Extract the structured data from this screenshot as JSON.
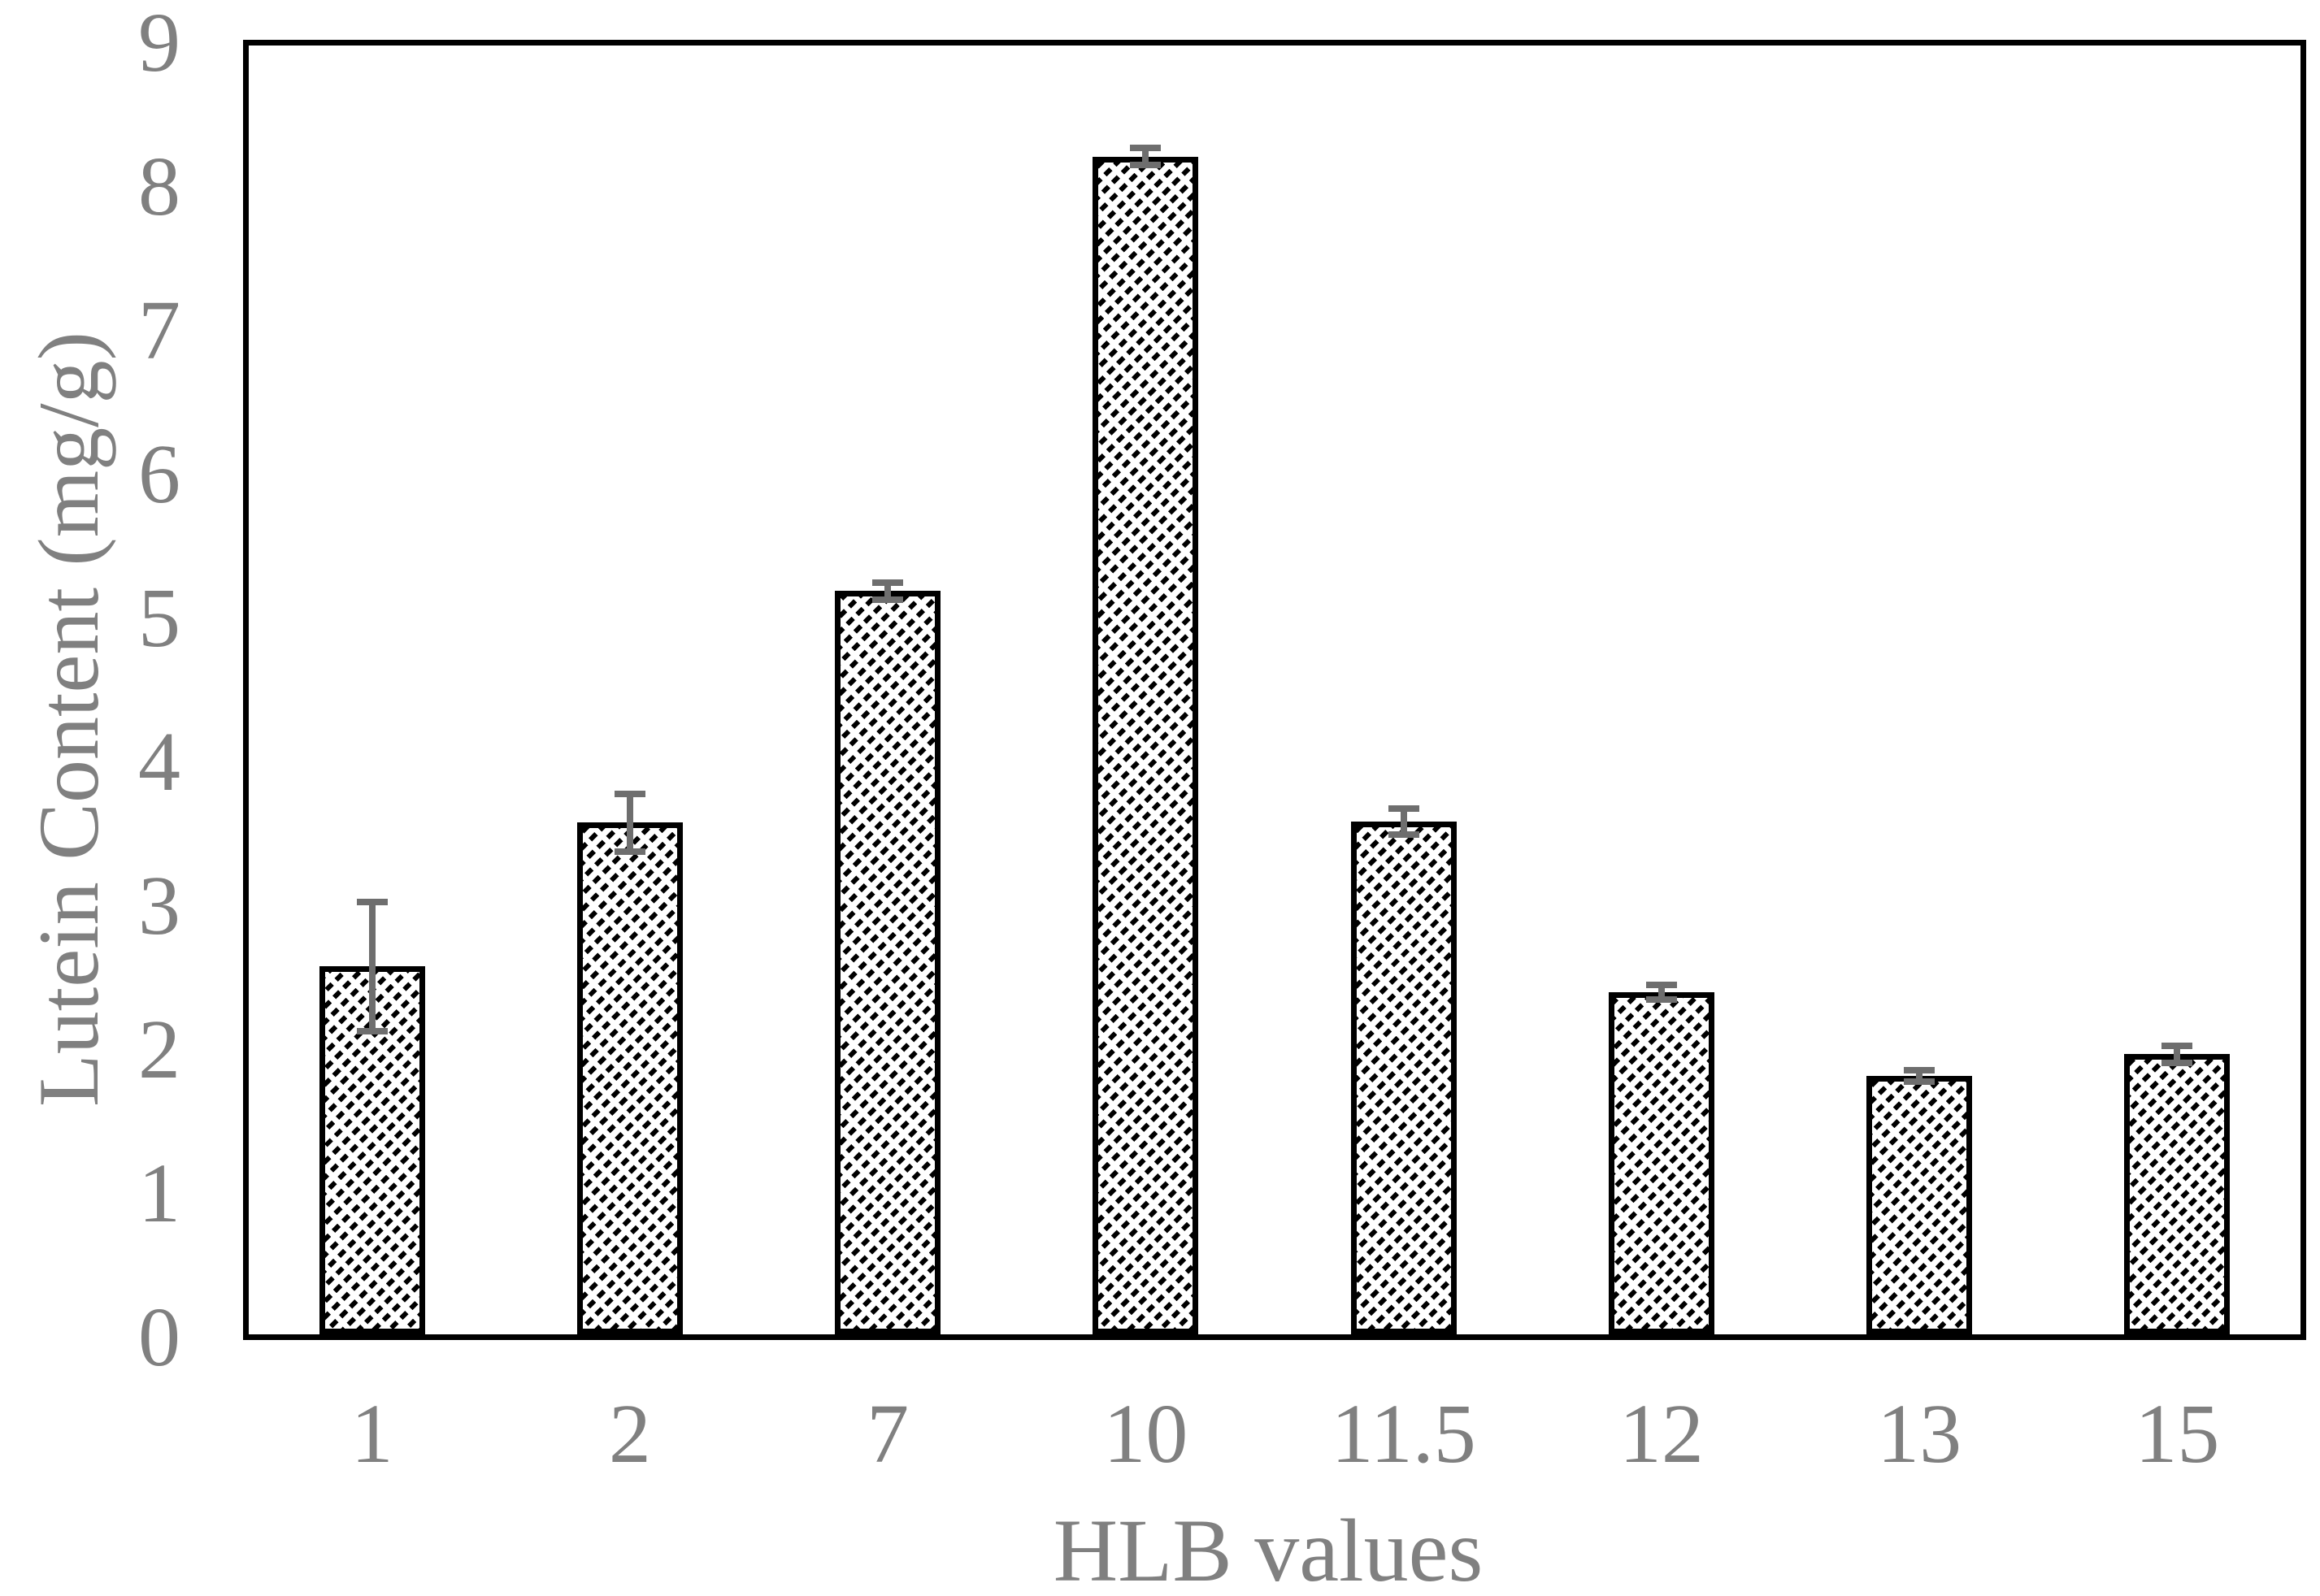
{
  "figure": {
    "background": "#ffffff"
  },
  "colors": {
    "text": "#808080",
    "error_bar": "#6e6e6e",
    "bar_fill": "#ffffff",
    "bar_hatch": "#000000",
    "bar_border": "#000000",
    "plot_border": "#000000"
  },
  "chart_data": {
    "type": "bar",
    "title": "",
    "categories": [
      "1",
      "2",
      "7",
      "10",
      "11.5",
      "12",
      "13",
      "15"
    ],
    "values": [
      2.58,
      3.58,
      5.19,
      8.21,
      3.59,
      2.4,
      1.82,
      1.97
    ],
    "error_bars": [
      0.45,
      0.2,
      0.06,
      0.06,
      0.09,
      0.05,
      0.04,
      0.06
    ],
    "xlabel": "HLB values",
    "ylabel": "Lutein Content (mg/g)",
    "ylim": [
      0,
      9
    ],
    "yticks": [
      "0",
      "1",
      "2",
      "3",
      "4",
      "5",
      "6",
      "7",
      "8",
      "9"
    ],
    "grid": false,
    "legend_position": "none",
    "bar_hatch_style": "dashed-upward-diagonal"
  }
}
